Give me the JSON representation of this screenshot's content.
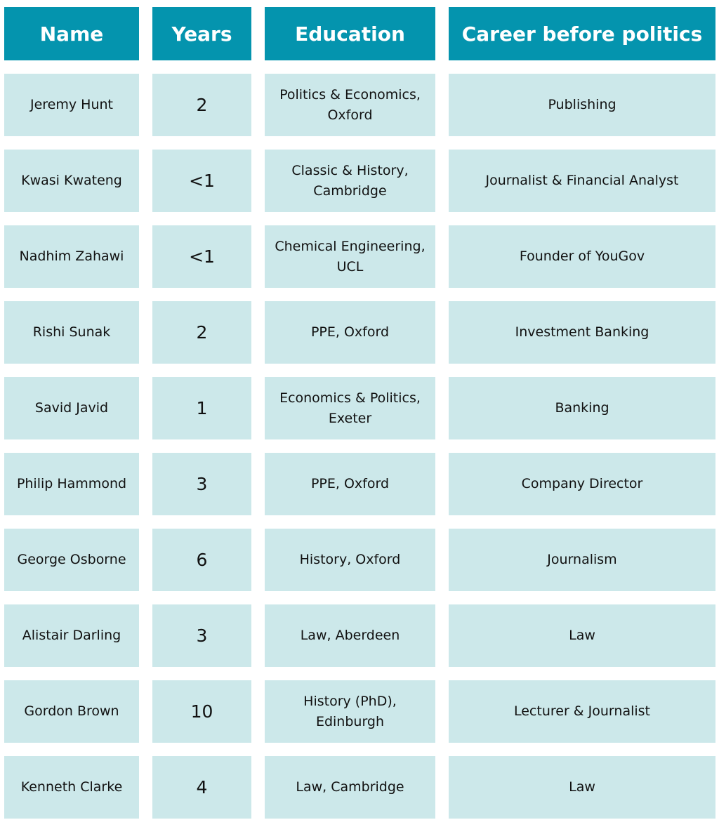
{
  "colors": {
    "header_bg": "#0494ae",
    "cell_bg": "#cce8ea",
    "header_text": "#ffffff"
  },
  "headers": [
    "Name",
    "Years",
    "Education",
    "Career before politics"
  ],
  "rows": [
    [
      "Jeremy Hunt",
      "2",
      "Politics & Economics, Oxford",
      "Publishing"
    ],
    [
      "Kwasi Kwateng",
      "<1",
      "Classic & History, Cambridge",
      "Journalist & Financial Analyst"
    ],
    [
      "Nadhim Zahawi",
      "<1",
      "Chemical Engineering, UCL",
      "Founder of YouGov"
    ],
    [
      "Rishi Sunak",
      "2",
      "PPE, Oxford",
      "Investment Banking"
    ],
    [
      "Savid Javid",
      "1",
      "Economics & Politics, Exeter",
      "Banking"
    ],
    [
      "Philip Hammond",
      "3",
      "PPE, Oxford",
      "Company Director"
    ],
    [
      "George Osborne",
      "6",
      "History, Oxford",
      "Journalism"
    ],
    [
      "Alistair Darling",
      "3",
      "Law, Aberdeen",
      "Law"
    ],
    [
      "Gordon Brown",
      "10",
      "History (PhD), Edinburgh",
      "Lecturer & Journalist"
    ],
    [
      "Kenneth Clarke",
      "4",
      "Law, Cambridge",
      "Law"
    ]
  ]
}
